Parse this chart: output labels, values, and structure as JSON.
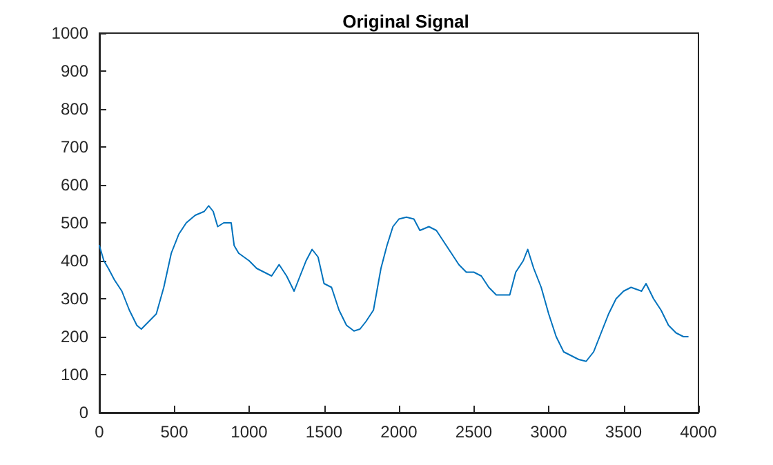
{
  "chart_data": {
    "type": "line",
    "title": "Original Signal",
    "grid": false,
    "marker": "none",
    "line_style": "solid",
    "xlim": [
      0,
      4000
    ],
    "xticks": [
      0,
      500,
      1000,
      1500,
      2000,
      2500,
      3000,
      3500,
      4000
    ],
    "ylim": [
      0,
      1000
    ],
    "yticks": [
      0,
      100,
      200,
      300,
      400,
      500,
      600,
      700,
      800,
      900,
      1000
    ],
    "x": [
      0,
      30,
      60,
      100,
      150,
      200,
      250,
      280,
      330,
      380,
      430,
      480,
      530,
      580,
      640,
      700,
      730,
      760,
      790,
      830,
      880,
      900,
      930,
      1000,
      1050,
      1100,
      1150,
      1200,
      1250,
      1300,
      1330,
      1380,
      1420,
      1460,
      1500,
      1550,
      1600,
      1650,
      1700,
      1740,
      1780,
      1830,
      1880,
      1920,
      1960,
      2000,
      2050,
      2100,
      2140,
      2200,
      2250,
      2300,
      2350,
      2400,
      2450,
      2500,
      2550,
      2600,
      2650,
      2700,
      2740,
      2780,
      2830,
      2860,
      2900,
      2950,
      3000,
      3050,
      3100,
      3150,
      3200,
      3250,
      3300,
      3350,
      3400,
      3450,
      3500,
      3550,
      3620,
      3650,
      3700,
      3750,
      3800,
      3850,
      3900,
      3930
    ],
    "series": [
      {
        "color": "#0072bd",
        "values": [
          440,
          400,
          380,
          350,
          320,
          270,
          230,
          220,
          240,
          260,
          330,
          420,
          470,
          500,
          520,
          530,
          545,
          530,
          490,
          500,
          500,
          440,
          420,
          400,
          380,
          370,
          360,
          390,
          360,
          320,
          350,
          400,
          430,
          410,
          340,
          330,
          270,
          230,
          215,
          220,
          240,
          270,
          380,
          440,
          490,
          510,
          515,
          510,
          480,
          490,
          480,
          450,
          420,
          390,
          370,
          370,
          360,
          330,
          310,
          310,
          310,
          370,
          400,
          430,
          380,
          330,
          260,
          200,
          160,
          150,
          140,
          135,
          160,
          210,
          260,
          300,
          320,
          330,
          320,
          340,
          300,
          270,
          230,
          210,
          200,
          200
        ]
      }
    ]
  }
}
